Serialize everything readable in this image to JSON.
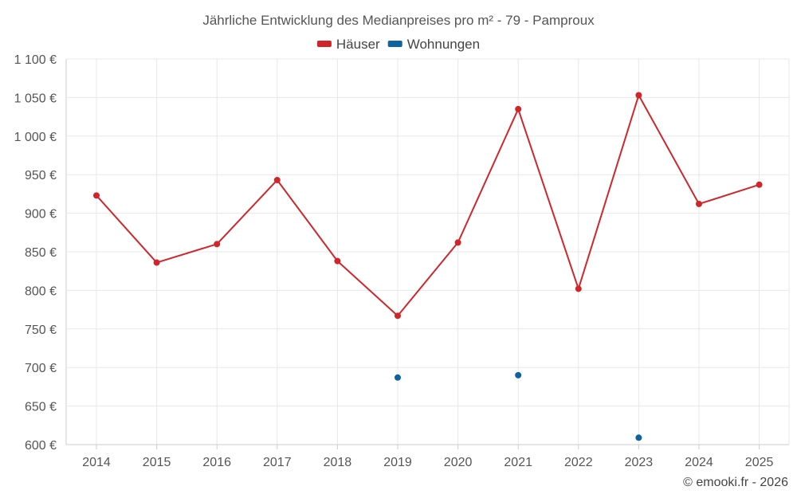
{
  "chart_data": {
    "type": "line",
    "title": "Jährliche Entwicklung des Medianpreises pro m² - 79 - Pamproux",
    "categories": [
      "2014",
      "2015",
      "2016",
      "2017",
      "2018",
      "2019",
      "2020",
      "2021",
      "2022",
      "2023",
      "2024",
      "2025"
    ],
    "ylim": [
      600,
      1100
    ],
    "y_ticks": [
      600,
      650,
      700,
      750,
      800,
      850,
      900,
      950,
      1000,
      1050,
      1100
    ],
    "y_tick_labels": [
      "600 €",
      "650 €",
      "700 €",
      "750 €",
      "800 €",
      "850 €",
      "900 €",
      "950 €",
      "1 000 €",
      "1 050 €",
      "1 100 €"
    ],
    "grid": true,
    "legend_position": "top-center",
    "series": [
      {
        "name": "Häuser",
        "color": "#d0262b",
        "values": [
          923,
          836,
          860,
          943,
          838,
          767,
          862,
          1035,
          802,
          1053,
          912,
          937
        ]
      },
      {
        "name": "Wohnungen",
        "color": "#0e63a0",
        "values": [
          null,
          null,
          null,
          null,
          null,
          687,
          null,
          690,
          null,
          609,
          null,
          null
        ]
      }
    ]
  },
  "credit": "© emooki.fr - 2026"
}
